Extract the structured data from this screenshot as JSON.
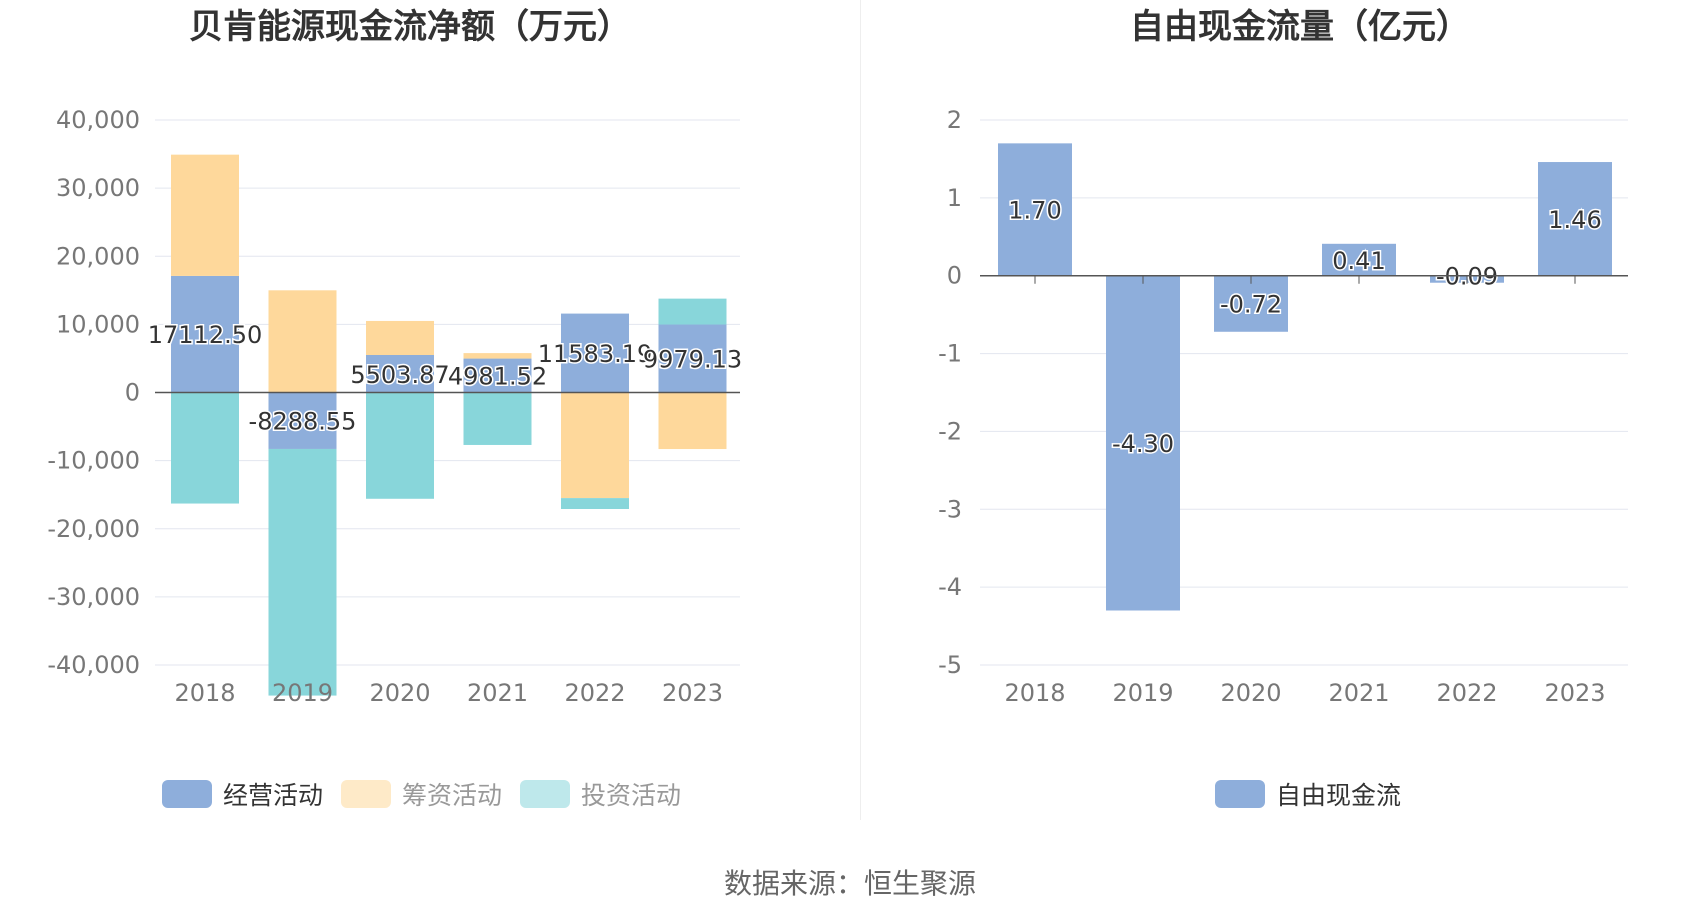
{
  "chart_data": [
    {
      "type": "bar",
      "stacked": true,
      "title": "贝肯能源现金流净额（万元）",
      "categories": [
        "2018",
        "2019",
        "2020",
        "2021",
        "2022",
        "2023"
      ],
      "ylim": [
        -40000,
        40000
      ],
      "yticks": [
        40000,
        30000,
        20000,
        10000,
        0,
        -10000,
        -20000,
        -30000,
        -40000
      ],
      "ytick_labels": [
        "40,000",
        "30,000",
        "20,000",
        "10,000",
        "0",
        "-10,000",
        "-20,000",
        "-30,000",
        "-40,000"
      ],
      "grid": true,
      "series": [
        {
          "name": "经营活动",
          "color": "#8eaedb",
          "values": [
            17112.5,
            -8288.55,
            5503.87,
            4981.52,
            11583.19,
            9979.13
          ],
          "labels": [
            "17112.50",
            "-8288.55",
            "5503.87",
            "4981.52",
            "11583.19",
            "9979.13"
          ]
        },
        {
          "name": "筹资活动",
          "color": "#fed89b",
          "values": [
            17800,
            15000,
            5000,
            800,
            -15500,
            -8300
          ]
        },
        {
          "name": "投资活动",
          "color": "#88d6da",
          "values": [
            -16300,
            -36200,
            -15600,
            -7700,
            -1600,
            3800
          ]
        }
      ],
      "legend": {
        "position": "bottom",
        "items": [
          "经营活动",
          "筹资活动",
          "投资活动"
        ]
      }
    },
    {
      "type": "bar",
      "title": "自由现金流量（亿元）",
      "categories": [
        "2018",
        "2019",
        "2020",
        "2021",
        "2022",
        "2023"
      ],
      "ylim": [
        -5,
        2
      ],
      "yticks": [
        2,
        1,
        0,
        -1,
        -2,
        -3,
        -4,
        -5
      ],
      "ytick_labels": [
        "2",
        "1",
        "0",
        "-1",
        "-2",
        "-3",
        "-4",
        "-5"
      ],
      "grid": true,
      "series": [
        {
          "name": "自由现金流",
          "color": "#8eaedb",
          "values": [
            1.7,
            -4.3,
            -0.72,
            0.41,
            -0.09,
            1.46
          ],
          "labels": [
            "1.70",
            "-4.30",
            "-0.72",
            "0.41",
            "-0.09",
            "1.46"
          ]
        }
      ],
      "legend": {
        "position": "bottom",
        "items": [
          "自由现金流"
        ]
      }
    }
  ],
  "source_text": "数据来源：恒生聚源"
}
